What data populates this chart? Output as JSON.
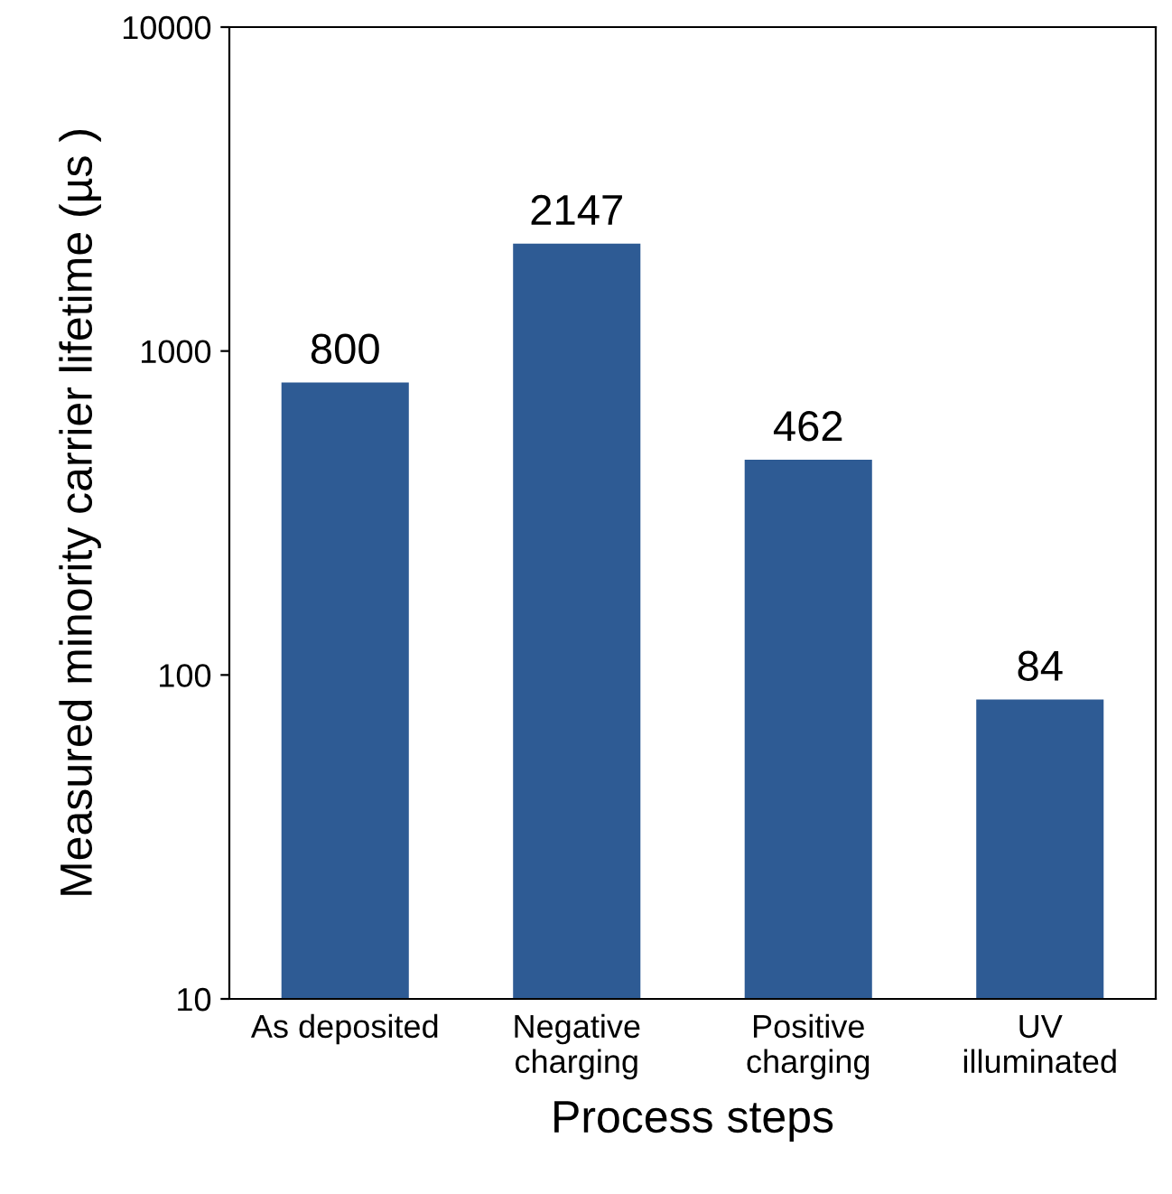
{
  "chart_data": {
    "type": "bar",
    "xlabel": "Process steps",
    "ylabel": "Measured minority carrier lifetime (µs )",
    "categories": [
      "As deposited",
      "Negative\ncharging",
      "Positive\ncharging",
      "UV\nilluminated"
    ],
    "values": [
      800,
      2147,
      462,
      84
    ],
    "color": "#2e5b94",
    "log": true,
    "ylim": [
      10,
      10000
    ],
    "yticks": [
      10,
      100,
      1000,
      10000
    ],
    "data_labels": true,
    "grid": false,
    "legend": false
  }
}
